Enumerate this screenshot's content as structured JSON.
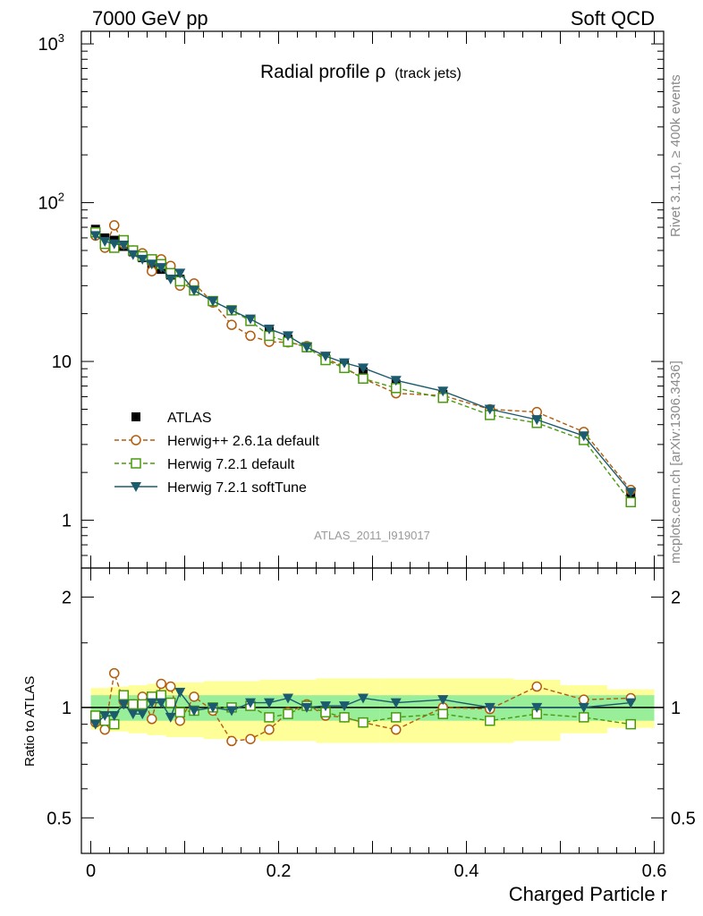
{
  "header": {
    "left": "7000 GeV pp",
    "right": "Soft QCD"
  },
  "side_labels": {
    "rivet": "Rivet 3.1.10, ≥ 400k events",
    "mcplots": "mcplots.cern.ch [arXiv:1306.3436]"
  },
  "chart_data": [
    {
      "type": "line",
      "title": "Radial profile ρ",
      "title_suffix": "(track jets)",
      "analysis_id": "ATLAS_2011_I919017",
      "yscale": "log",
      "ylim": [
        0.5,
        1200
      ],
      "xlim": [
        -0.01,
        0.61
      ],
      "y_ticks": [
        "1",
        "10",
        "10",
        "10"
      ],
      "y_tick_exponents": [
        "",
        "",
        "2",
        "3"
      ],
      "legend_position": "lower-left",
      "x": [
        0.005,
        0.015,
        0.025,
        0.035,
        0.045,
        0.055,
        0.065,
        0.075,
        0.085,
        0.095,
        0.11,
        0.13,
        0.15,
        0.17,
        0.19,
        0.21,
        0.23,
        0.25,
        0.27,
        0.29,
        0.325,
        0.375,
        0.425,
        0.475,
        0.525,
        0.575
      ],
      "series": [
        {
          "name": "ATLAS",
          "style": "data",
          "color": "#000000",
          "marker": "square-filled",
          "values": [
            68,
            60,
            58,
            53,
            49,
            45,
            40,
            38,
            35,
            33,
            29,
            24,
            21,
            18,
            15.5,
            13.8,
            12.2,
            10.5,
            9.7,
            8.6,
            7.2,
            6.2,
            5.0,
            4.3,
            3.4,
            1.45
          ]
        },
        {
          "name": "Herwig++ 2.6.1a default",
          "style": "dashed",
          "color": "#b25c0d",
          "marker": "circle-open",
          "values": [
            62,
            52,
            72,
            55,
            50,
            48,
            37,
            44,
            40,
            30,
            31,
            23.5,
            17,
            14.5,
            13.3,
            13.2,
            12.5,
            10.5,
            9.2,
            7.8,
            6.3,
            6.1,
            5.0,
            4.8,
            3.6,
            1.55
          ]
        },
        {
          "name": "Herwig 7.2.1 default",
          "style": "dashed",
          "color": "#4a9a0e",
          "marker": "square-open",
          "values": [
            65,
            55,
            52,
            58,
            50,
            46,
            44,
            41,
            36,
            32,
            28,
            24,
            21,
            18,
            14.5,
            13.3,
            12.3,
            10.2,
            9.1,
            7.8,
            6.8,
            5.9,
            4.6,
            4.1,
            3.2,
            1.3
          ]
        },
        {
          "name": "Herwig 7.2.1 softTune",
          "style": "solid",
          "color": "#1c5a6e",
          "marker": "triangle-down",
          "values": [
            62,
            57,
            55,
            54,
            47,
            44,
            41,
            39,
            33,
            36,
            28,
            24,
            21,
            18.5,
            16,
            14.5,
            12.3,
            10.8,
            9.8,
            9.1,
            7.6,
            6.5,
            5.0,
            4.3,
            3.4,
            1.5
          ]
        }
      ]
    },
    {
      "type": "line",
      "ylabel": "Ratio to ATLAS",
      "xlabel": "Charged Particle r",
      "yscale": "log",
      "ylim": [
        0.4,
        2.4
      ],
      "xlim": [
        -0.01,
        0.61
      ],
      "y_ticks": [
        "0.5",
        "1",
        "2"
      ],
      "x_ticks": [
        "0",
        "0.2",
        "0.4",
        "0.6"
      ],
      "series": [
        {
          "name": "Herwig++ 2.6.1a default",
          "values": [
            0.91,
            0.87,
            1.24,
            1.04,
            1.02,
            1.07,
            0.93,
            1.16,
            1.14,
            0.92,
            1.07,
            0.98,
            0.81,
            0.82,
            0.87,
            0.97,
            1.02,
            0.95,
            0.94,
            0.91,
            0.87,
            1.0,
            0.99,
            1.14,
            1.05,
            1.06
          ]
        },
        {
          "name": "Herwig 7.2.1 default",
          "values": [
            0.95,
            0.92,
            0.9,
            1.08,
            1.02,
            1.02,
            1.07,
            1.08,
            1.03,
            0.97,
            0.98,
            1.0,
            1.0,
            1.01,
            0.94,
            0.96,
            1.01,
            0.97,
            0.94,
            0.91,
            0.94,
            0.96,
            0.92,
            0.96,
            0.94,
            0.9
          ]
        },
        {
          "name": "Herwig 7.2.1 softTune",
          "values": [
            0.9,
            0.95,
            0.95,
            1.02,
            0.96,
            0.96,
            1.03,
            1.03,
            0.94,
            1.1,
            0.98,
            1.0,
            0.98,
            1.03,
            1.03,
            1.06,
            1.0,
            1.01,
            1.01,
            1.06,
            1.03,
            1.05,
            1.0,
            1.0,
            1.0,
            1.03
          ]
        }
      ],
      "band_green": [
        0.08,
        0.08,
        0.08,
        0.08,
        0.08,
        0.08,
        0.08,
        0.08,
        0.08,
        0.08,
        0.08,
        0.08,
        0.08,
        0.08,
        0.08,
        0.08,
        0.08,
        0.08,
        0.08,
        0.08,
        0.08,
        0.08,
        0.08,
        0.08,
        0.08,
        0.08
      ],
      "band_yellow": [
        0.13,
        0.13,
        0.14,
        0.14,
        0.15,
        0.15,
        0.16,
        0.16,
        0.17,
        0.17,
        0.17,
        0.18,
        0.18,
        0.18,
        0.19,
        0.19,
        0.19,
        0.2,
        0.2,
        0.2,
        0.2,
        0.2,
        0.2,
        0.19,
        0.15,
        0.12
      ]
    }
  ]
}
